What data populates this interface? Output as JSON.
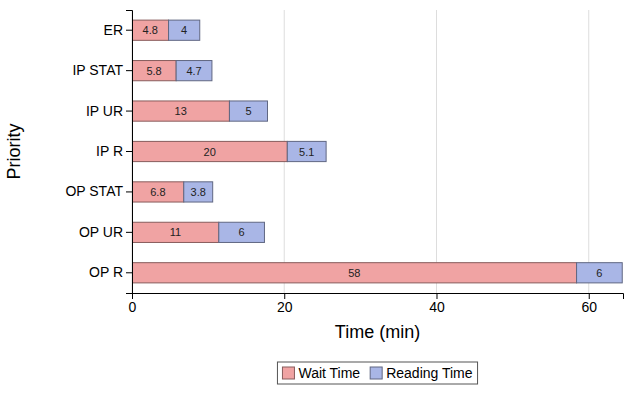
{
  "chart_data": {
    "type": "bar",
    "orientation": "horizontal",
    "stacked": true,
    "data_labels": true,
    "grid": true,
    "legend": "bottom",
    "x_label": "Time (min)",
    "y_label": "Priority",
    "categories": [
      "ER",
      "IP STAT",
      "IP UR",
      "IP R",
      "OP STAT",
      "OP UR",
      "OP R"
    ],
    "series": [
      {
        "name": "Wait Time",
        "color": "#f0a3a3",
        "values": [
          4.8,
          5.8,
          12.8,
          20.4,
          6.8,
          11.4,
          58.4
        ],
        "value_labels": [
          "4.8",
          "5.8",
          "13",
          "20",
          "6.8",
          "11",
          "58"
        ]
      },
      {
        "name": "Reading Time",
        "color": "#a9b6e6",
        "values": [
          4.1,
          4.7,
          5.0,
          5.1,
          3.8,
          6.0,
          6.0
        ],
        "value_labels": [
          "4",
          "4.7",
          "5",
          "5.1",
          "3.8",
          "6",
          "6"
        ]
      }
    ],
    "xlim": [
      0,
      64.5
    ],
    "xticks": [
      0,
      20,
      40,
      60
    ]
  }
}
